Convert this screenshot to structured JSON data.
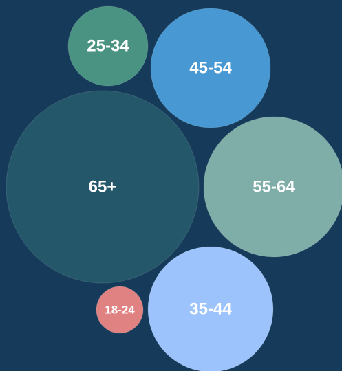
{
  "chart_data": {
    "type": "bubble",
    "title": "",
    "xlabel": "",
    "ylabel": "",
    "series": [
      {
        "category": "25-34",
        "value": 13,
        "color": "#4a9383"
      },
      {
        "category": "45-54",
        "value": 30,
        "color": "#4898d3"
      },
      {
        "category": "65+",
        "value": 78,
        "color": "#245769"
      },
      {
        "category": "55-64",
        "value": 42,
        "color": "#7fada7"
      },
      {
        "category": "18-24",
        "value": 4,
        "color": "#e08282"
      },
      {
        "category": "35-44",
        "value": 33,
        "color": "#9cc3fb"
      }
    ]
  },
  "colors": {
    "background": "#163a5a",
    "label": "#ffffff"
  }
}
